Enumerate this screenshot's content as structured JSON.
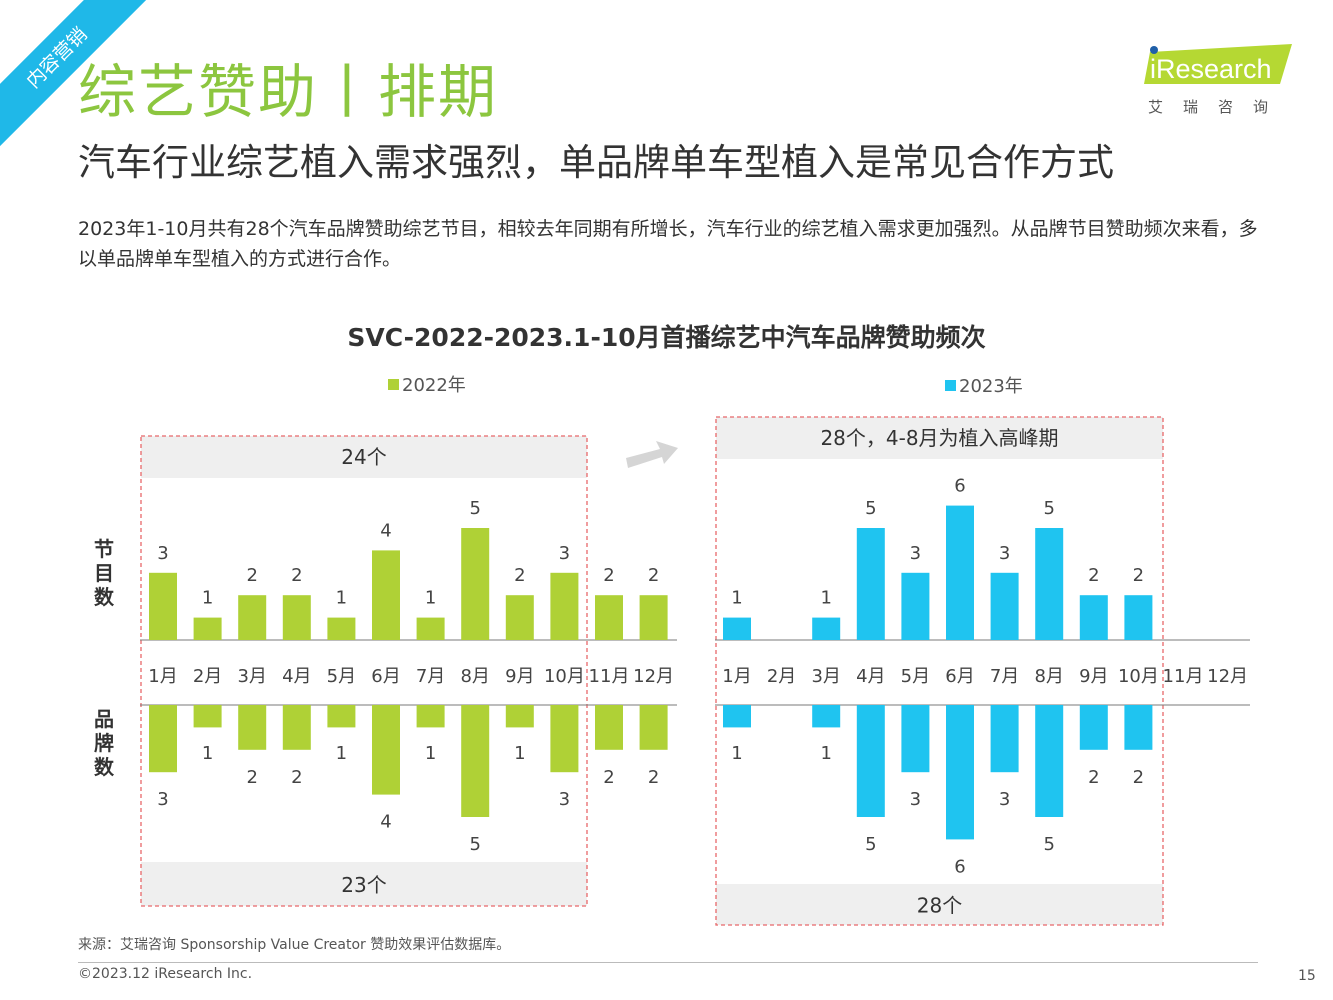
{
  "header": {
    "ribbon": "内容营销",
    "title": "综艺赞助丨排期",
    "subtitle": "汽车行业综艺植入需求强烈，单品牌单车型植入是常见合作方式",
    "intro": "2023年1-10月共有28个汽车品牌赞助综艺节目，相较去年同期有所增长，汽车行业的综艺植入需求更加强烈。从品牌节目赞助频次来看，多以单品牌单车型植入的方式进行合作。",
    "logo_text": "iResearch",
    "logo_sub": "艾瑞咨询"
  },
  "colors": {
    "green": "#afd136",
    "blue": "#1fc4f0",
    "title_green": "#8cc63f"
  },
  "chart_data": {
    "type": "bar",
    "title": "SVC-2022-2023.1-10月首播综艺中汽车品牌赞助频次",
    "categories": [
      "1月",
      "2月",
      "3月",
      "4月",
      "5月",
      "6月",
      "7月",
      "8月",
      "9月",
      "10月",
      "11月",
      "12月"
    ],
    "row_labels": {
      "top": "节目数",
      "bottom": "品牌数"
    },
    "panels": [
      {
        "legend": "2022年",
        "color": "#afd136",
        "top_total": "24个",
        "bottom_total": "23个",
        "series": [
          {
            "name": "节目数",
            "values": [
              3,
              1,
              2,
              2,
              1,
              4,
              1,
              5,
              2,
              3,
              2,
              2
            ]
          },
          {
            "name": "品牌数",
            "values": [
              3,
              1,
              2,
              2,
              1,
              4,
              1,
              5,
              1,
              3,
              2,
              2
            ]
          }
        ]
      },
      {
        "legend": "2023年",
        "color": "#1fc4f0",
        "top_total": "28个，4-8月为植入高峰期",
        "bottom_total": "28个",
        "series": [
          {
            "name": "节目数",
            "values": [
              1,
              0,
              1,
              5,
              3,
              6,
              3,
              5,
              2,
              2,
              null,
              null
            ]
          },
          {
            "name": "品牌数",
            "values": [
              1,
              0,
              1,
              5,
              3,
              6,
              3,
              5,
              2,
              2,
              null,
              null
            ]
          }
        ]
      }
    ]
  },
  "footer": {
    "source": "来源：艾瑞咨询 Sponsorship Value Creator 赞助效果评估数据库。",
    "copyright": "©2023.12 iResearch Inc.",
    "page": "15"
  }
}
